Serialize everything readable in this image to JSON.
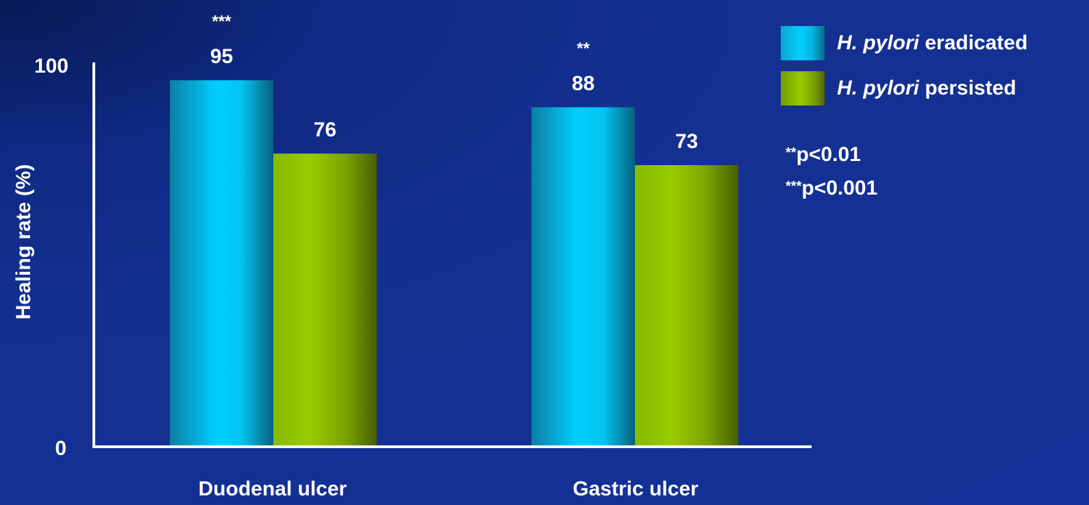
{
  "chart_data": {
    "type": "bar",
    "categories": [
      "Duodenal ulcer",
      "Gastric ulcer"
    ],
    "series": [
      {
        "name": "H. pylori eradicated",
        "name_italic": "H. pylori",
        "name_rest": " eradicated",
        "values": [
          95,
          88
        ],
        "color": "#00cfff"
      },
      {
        "name": "H. pylori persisted",
        "name_italic": "H. pylori",
        "name_rest": " persisted",
        "values": [
          76,
          73
        ],
        "color": "#99cc00"
      }
    ],
    "significance": [
      "***",
      "**"
    ],
    "ylabel": "Healing rate (%)",
    "xlabel": "",
    "ylim": [
      0,
      100
    ],
    "yticks": [
      "0",
      "100"
    ],
    "legend": "top-right",
    "grid": false,
    "notes": [
      {
        "stars": "**",
        "text": "p<0.01"
      },
      {
        "stars": "***",
        "text": "p<0.001"
      }
    ]
  }
}
